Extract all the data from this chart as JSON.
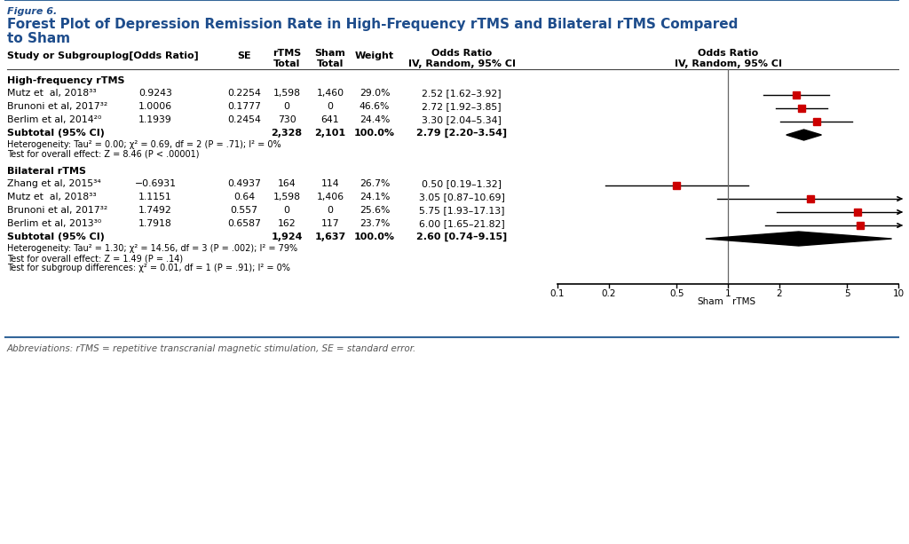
{
  "figure_label": "Figure 6.",
  "title_line1": "Forest Plot of Depression Remission Rate in High-Frequency rTMS and Bilateral rTMS Compared",
  "title_line2": "to Sham",
  "hf_group_label": "High-frequency rTMS",
  "hf_studies": [
    {
      "name": "Mutz et  al, 2018³³",
      "log_or": "0.9243",
      "se": "0.2254",
      "rtms_total": "1,598",
      "sham_total": "1,460",
      "weight": "29.0%",
      "or_ci": "2.52 [1.62–3.92]",
      "or": 2.52,
      "ci_low": 1.62,
      "ci_high": 3.92
    },
    {
      "name": "Brunoni et al, 2017³²",
      "log_or": "1.0006",
      "se": "0.1777",
      "rtms_total": "0",
      "sham_total": "0",
      "weight": "46.6%",
      "or_ci": "2.72 [1.92–3.85]",
      "or": 2.72,
      "ci_low": 1.92,
      "ci_high": 3.85
    },
    {
      "name": "Berlim et al, 2014²⁰",
      "log_or": "1.1939",
      "se": "0.2454",
      "rtms_total": "730",
      "sham_total": "641",
      "weight": "24.4%",
      "or_ci": "3.30 [2.04–5.34]",
      "or": 3.3,
      "ci_low": 2.04,
      "ci_high": 5.34
    }
  ],
  "hf_subtotal": {
    "rtms_total": "2,328",
    "sham_total": "2,101",
    "weight": "100.0%",
    "or_ci": "2.79 [2.20–3.54]",
    "or": 2.79,
    "ci_low": 2.2,
    "ci_high": 3.54
  },
  "hf_heterogeneity": "Heterogeneity: Tau² = 0.00; χ² = 0.69, df = 2 (P = .71); I² = 0%",
  "hf_overall": "Test for overall effect: Z = 8.46 (P < .00001)",
  "bil_group_label": "Bilateral rTMS",
  "bil_studies": [
    {
      "name": "Zhang et al, 2015³⁴",
      "log_or": "−0.6931",
      "se": "0.4937",
      "rtms_total": "164",
      "sham_total": "114",
      "weight": "26.7%",
      "or_ci": "0.50 [0.19–1.32]",
      "or": 0.5,
      "ci_low": 0.19,
      "ci_high": 1.32,
      "clipped": false
    },
    {
      "name": "Mutz et  al, 2018³³",
      "log_or": "1.1151",
      "se": "0.64",
      "rtms_total": "1,598",
      "sham_total": "1,406",
      "weight": "24.1%",
      "or_ci": "3.05 [0.87–10.69]",
      "or": 3.05,
      "ci_low": 0.87,
      "ci_high": 10.69,
      "clipped": true
    },
    {
      "name": "Brunoni et al, 2017³²",
      "log_or": "1.7492",
      "se": "0.557",
      "rtms_total": "0",
      "sham_total": "0",
      "weight": "25.6%",
      "or_ci": "5.75 [1.93–17.13]",
      "or": 5.75,
      "ci_low": 1.93,
      "ci_high": 17.13,
      "clipped": true
    },
    {
      "name": "Berlim et al, 2013³⁰",
      "log_or": "1.7918",
      "se": "0.6587",
      "rtms_total": "162",
      "sham_total": "117",
      "weight": "23.7%",
      "or_ci": "6.00 [1.65–21.82]",
      "or": 6.0,
      "ci_low": 1.65,
      "ci_high": 21.82,
      "clipped": true
    }
  ],
  "bil_subtotal": {
    "rtms_total": "1,924",
    "sham_total": "1,637",
    "weight": "100.0%",
    "or_ci": "2.60 [0.74–9.15]",
    "or": 2.6,
    "ci_low": 0.74,
    "ci_high": 9.15
  },
  "bil_heterogeneity": "Heterogeneity: Tau² = 1.30; χ² = 14.56, df = 3 (P = .002); I² = 79%",
  "bil_overall": "Test for overall effect: Z = 1.49 (P = .14)",
  "subgroup_diff": "Test for subgroup differences: χ² = 0.01, df = 1 (P = .91); I² = 0%",
  "abbreviations": "Abbreviations: rTMS = repetitive transcranial magnetic stimulation, SE = standard error.",
  "axis_ticks": [
    0.1,
    0.2,
    0.5,
    1,
    2,
    5,
    10
  ],
  "axis_tick_labels": [
    "0.1",
    "0.2",
    "0.5",
    "1",
    "2",
    "5",
    "10"
  ],
  "title_color": "#1e4d8c",
  "figure_label_color": "#1e4d8c",
  "marker_color": "#cc0000",
  "diamond_color": "#000000",
  "bg_color": "#ffffff",
  "separator_color": "#336699",
  "text_color": "#000000"
}
